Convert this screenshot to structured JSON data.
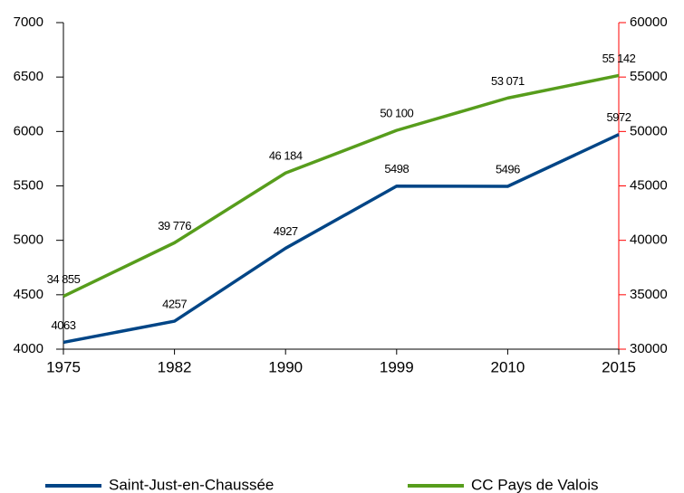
{
  "chart_data": {
    "type": "line",
    "categories": [
      "1975",
      "1982",
      "1990",
      "1999",
      "2010",
      "2015"
    ],
    "series": [
      {
        "name": "Saint-Just-en-Chaussée",
        "color": "#004586",
        "values": [
          4063,
          4257,
          4927,
          5498,
          5496,
          5972
        ]
      },
      {
        "name": "CC Pays de Valois",
        "color": "#579d1c",
        "axis": "y2",
        "values": [
          34855,
          39776,
          46184,
          50100,
          53071,
          55142
        ],
        "value_labels": [
          "34 855",
          "39 776",
          "46 184",
          "50 100",
          "53 071",
          "55 142"
        ]
      }
    ],
    "ylim": [
      4000,
      7000
    ],
    "yticks": [
      4000,
      4500,
      5000,
      5500,
      6000,
      6500,
      7000
    ],
    "y2lim": [
      30000,
      60000
    ],
    "y2ticks": [
      30000,
      35000,
      40000,
      45000,
      50000,
      55000,
      60000
    ],
    "y2_axis_color": "#ff0000",
    "grid": false,
    "legend": "bottom"
  }
}
